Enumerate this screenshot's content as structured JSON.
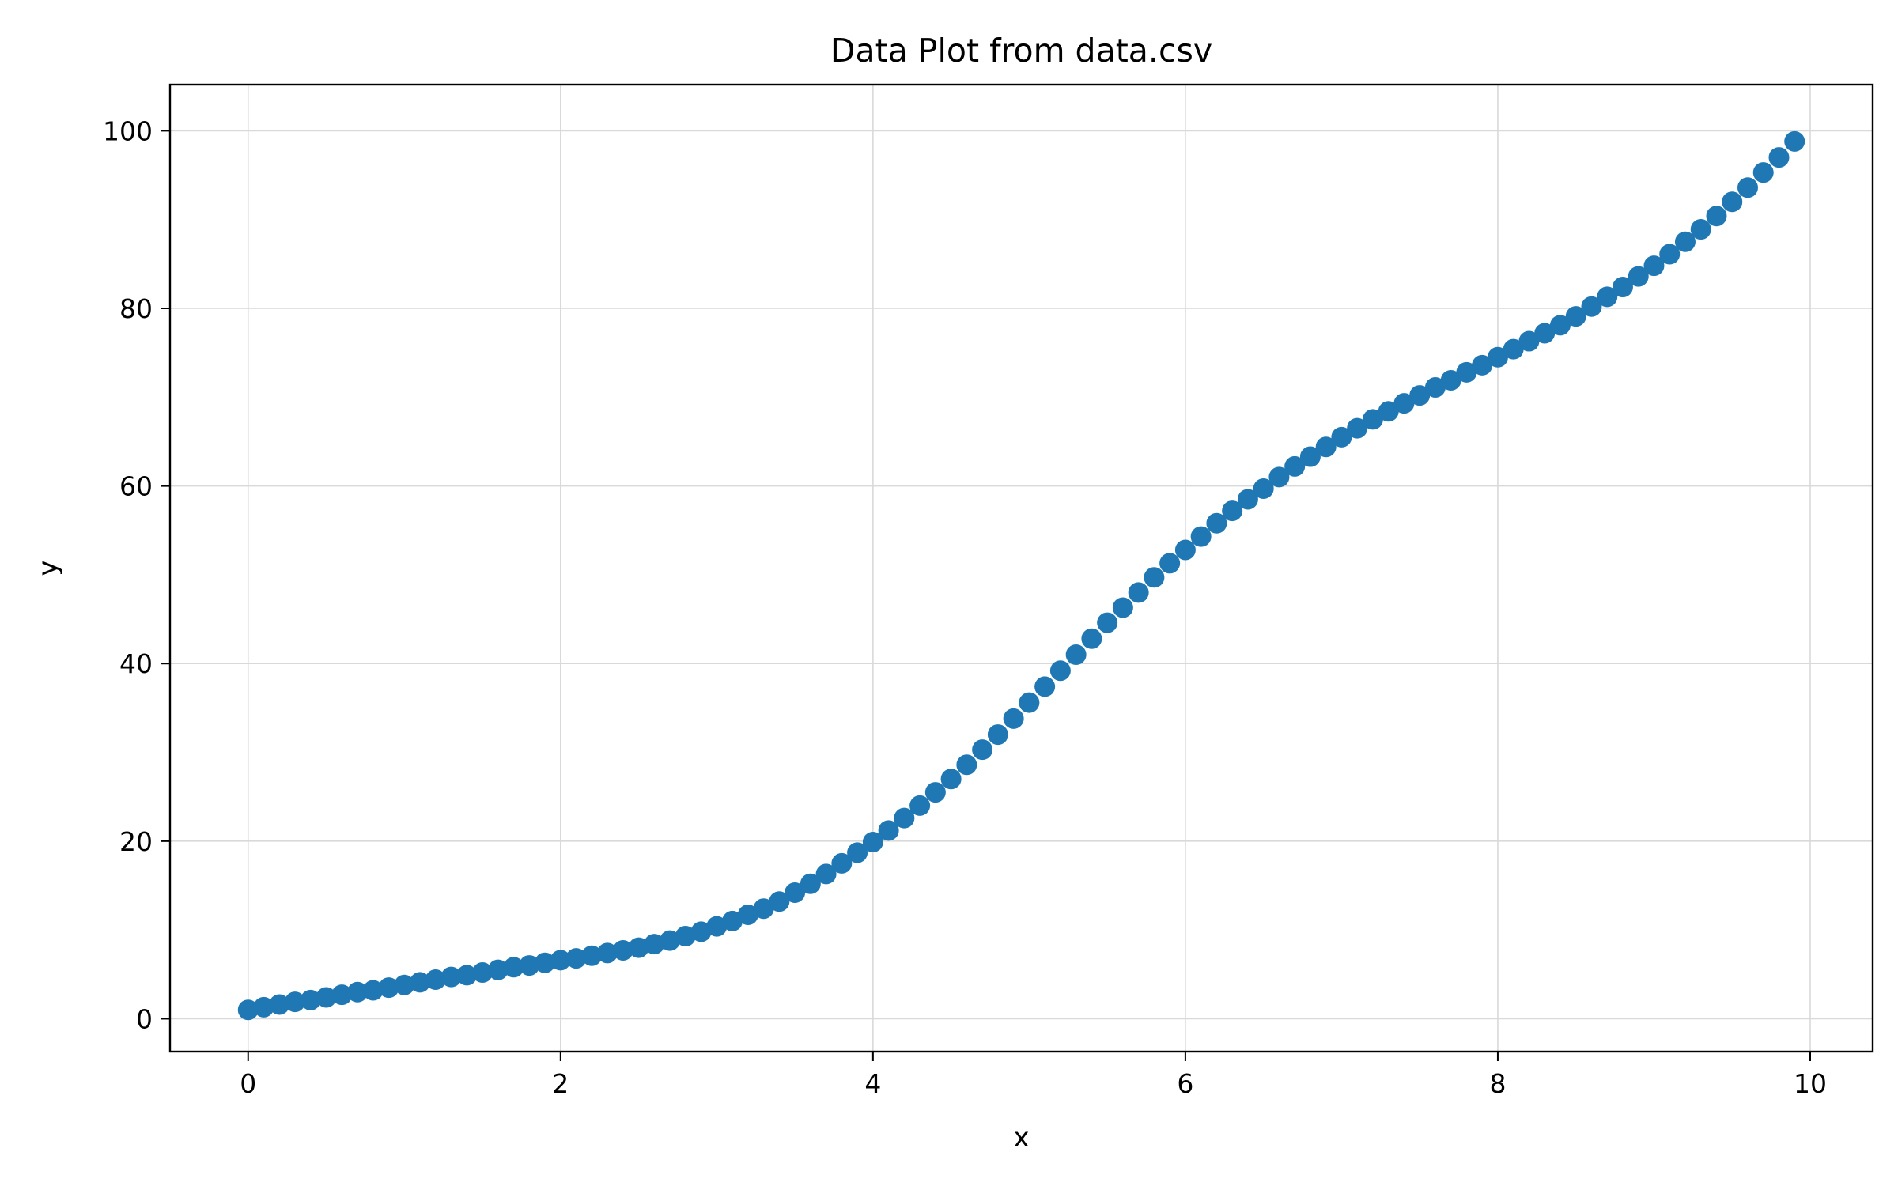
{
  "chart_data": {
    "type": "scatter",
    "title": "Data Plot from data.csv",
    "xlabel": "x",
    "ylabel": "y",
    "xlim": [
      -0.5,
      10.4
    ],
    "ylim": [
      -3.7,
      105.2
    ],
    "xticks": [
      0,
      2,
      4,
      6,
      8,
      10
    ],
    "yticks": [
      0,
      20,
      40,
      60,
      80,
      100
    ],
    "grid": true,
    "marker_color": "#1f77b4",
    "series": [
      {
        "x": [
          0.0,
          0.1,
          0.2,
          0.3,
          0.4,
          0.5,
          0.6,
          0.7,
          0.8,
          0.9,
          1.0,
          1.1,
          1.2,
          1.3,
          1.4,
          1.5,
          1.6,
          1.7,
          1.8,
          1.9,
          2.0,
          2.1,
          2.2,
          2.3,
          2.4,
          2.5,
          2.6,
          2.7,
          2.8,
          2.9,
          3.0,
          3.1,
          3.2,
          3.3,
          3.4,
          3.5,
          3.6,
          3.7,
          3.8,
          3.9,
          4.0,
          4.1,
          4.2,
          4.3,
          4.4,
          4.5,
          4.6,
          4.7,
          4.8,
          4.9,
          5.0,
          5.1,
          5.2,
          5.3,
          5.4,
          5.5,
          5.6,
          5.7,
          5.8,
          5.9,
          6.0,
          6.1,
          6.2,
          6.3,
          6.4,
          6.5,
          6.6,
          6.7,
          6.8,
          6.9,
          7.0,
          7.1,
          7.2,
          7.3,
          7.4,
          7.5,
          7.6,
          7.7,
          7.8,
          7.9,
          8.0,
          8.1,
          8.2,
          8.3,
          8.4,
          8.5,
          8.6,
          8.7,
          8.8,
          8.9,
          9.0,
          9.1,
          9.2,
          9.3,
          9.4,
          9.5,
          9.6,
          9.7,
          9.8,
          9.9
        ],
        "y": [
          1.0,
          1.3,
          1.6,
          1.9,
          2.1,
          2.4,
          2.7,
          3.0,
          3.2,
          3.5,
          3.8,
          4.1,
          4.4,
          4.7,
          4.9,
          5.2,
          5.5,
          5.8,
          6.0,
          6.3,
          6.6,
          6.8,
          7.1,
          7.4,
          7.7,
          8.0,
          8.4,
          8.8,
          9.3,
          9.8,
          10.4,
          11.0,
          11.7,
          12.4,
          13.2,
          14.2,
          15.2,
          16.3,
          17.5,
          18.7,
          19.9,
          21.2,
          22.6,
          24.0,
          25.5,
          27.0,
          28.6,
          30.3,
          32.0,
          33.8,
          35.6,
          37.4,
          39.2,
          41.0,
          42.8,
          44.6,
          46.3,
          48.0,
          49.7,
          51.3,
          52.8,
          54.3,
          55.8,
          57.2,
          58.5,
          59.7,
          61.0,
          62.2,
          63.3,
          64.4,
          65.5,
          66.5,
          67.5,
          68.4,
          69.3,
          70.2,
          71.1,
          71.9,
          72.8,
          73.6,
          74.5,
          75.4,
          76.3,
          77.2,
          78.1,
          79.1,
          80.2,
          81.3,
          82.4,
          83.6,
          84.8,
          86.1,
          87.5,
          88.9,
          90.4,
          92.0,
          93.6,
          95.3,
          97.0,
          98.8
        ]
      }
    ]
  }
}
